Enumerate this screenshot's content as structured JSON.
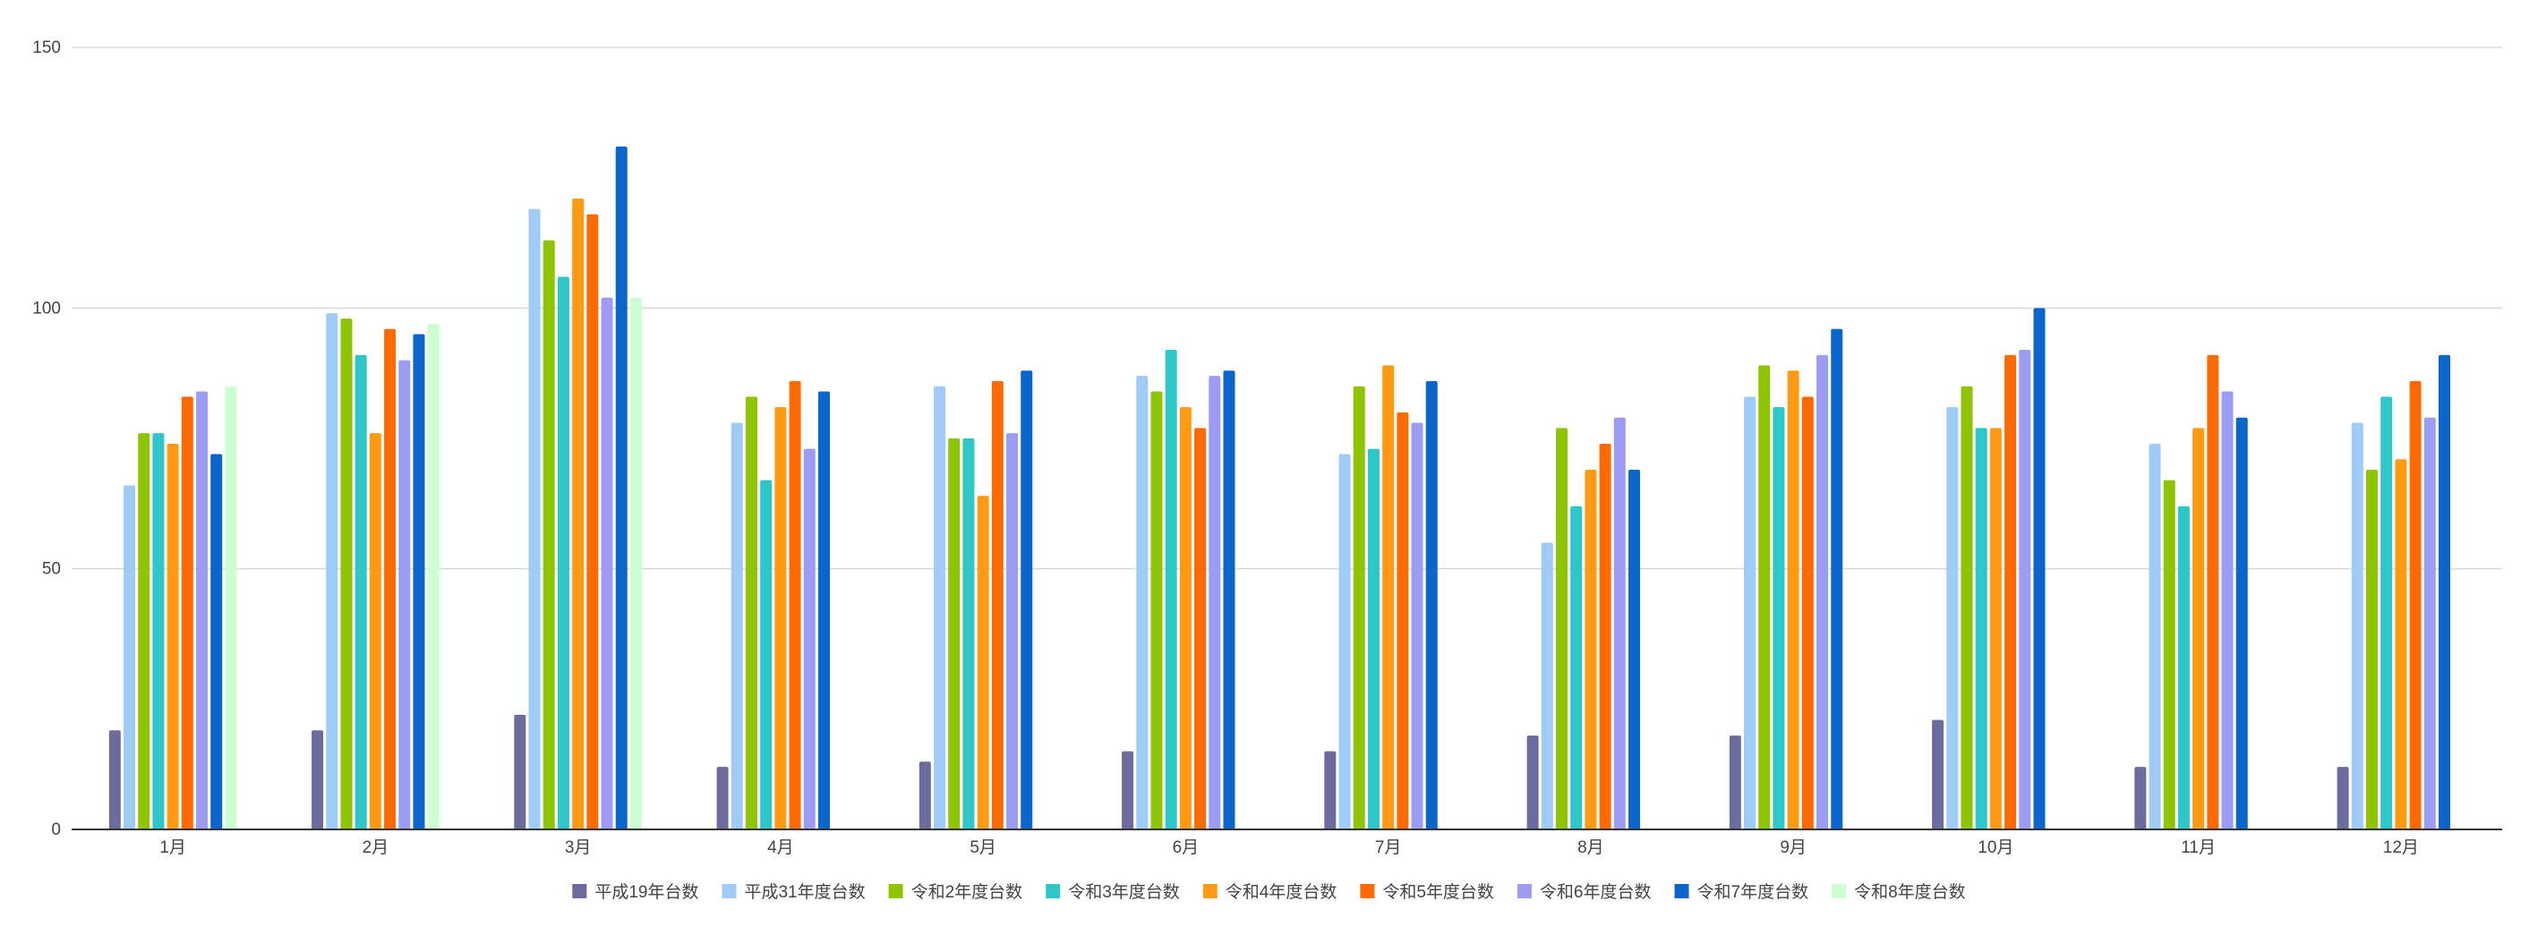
{
  "chart_data": {
    "type": "bar",
    "title": "",
    "xlabel": "",
    "ylabel": "",
    "categories": [
      "1月",
      "2月",
      "3月",
      "4月",
      "5月",
      "6月",
      "7月",
      "8月",
      "9月",
      "10月",
      "11月",
      "12月"
    ],
    "ylim": [
      0,
      150
    ],
    "yticks": [
      0,
      50,
      100,
      150
    ],
    "grid": true,
    "legend_position": "bottom",
    "series": [
      {
        "name": "平成19年台数",
        "color": "#6b6b9e",
        "values": [
          19,
          19,
          22,
          12,
          13,
          15,
          15,
          18,
          18,
          21,
          12,
          12
        ]
      },
      {
        "name": "平成31年度台数",
        "color": "#9ecbf7",
        "values": [
          66,
          99,
          119,
          78,
          85,
          87,
          72,
          55,
          83,
          81,
          74,
          78
        ]
      },
      {
        "name": "令和2年度台数",
        "color": "#8fc400",
        "values": [
          76,
          98,
          113,
          83,
          75,
          84,
          85,
          77,
          89,
          85,
          67,
          69
        ]
      },
      {
        "name": "令和3年度台数",
        "color": "#2ec7c9",
        "values": [
          76,
          91,
          106,
          67,
          75,
          92,
          73,
          62,
          81,
          77,
          62,
          83
        ]
      },
      {
        "name": "令和4年度台数",
        "color": "#ff9a12",
        "values": [
          74,
          76,
          121,
          81,
          64,
          81,
          89,
          69,
          88,
          77,
          77,
          71
        ]
      },
      {
        "name": "令和5年度台数",
        "color": "#ff6a00",
        "values": [
          83,
          96,
          118,
          86,
          86,
          77,
          80,
          74,
          83,
          91,
          91,
          86
        ]
      },
      {
        "name": "令和6年度台数",
        "color": "#9c9cf5",
        "values": [
          84,
          90,
          102,
          73,
          76,
          87,
          78,
          79,
          91,
          92,
          84,
          79
        ]
      },
      {
        "name": "令和7年度台数",
        "color": "#0a66cc",
        "values": [
          72,
          95,
          131,
          84,
          88,
          88,
          86,
          69,
          96,
          100,
          79,
          91
        ]
      },
      {
        "name": "令和8年度台数",
        "color": "#ccffd1",
        "values": [
          85,
          97,
          102,
          null,
          null,
          null,
          null,
          null,
          null,
          null,
          null,
          null
        ]
      }
    ]
  }
}
